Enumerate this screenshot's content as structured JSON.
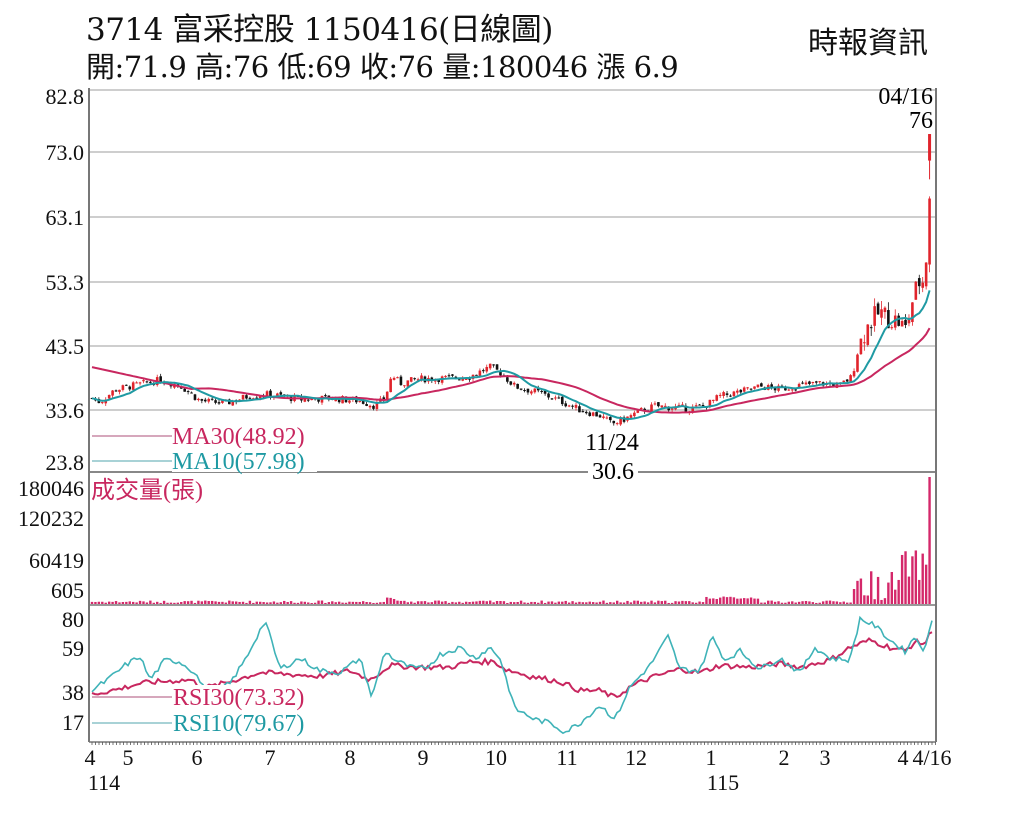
{
  "header": {
    "title": "3714  富采控股 1150416(日線圖)",
    "summary": "開:71.9 高:76 低:69 收:76 量:180046 漲 6.9",
    "source": "時報資訊"
  },
  "price_panel": {
    "y_ticks": [
      "82.8",
      "73.0",
      "63.1",
      "53.3",
      "43.5",
      "33.6",
      "23.8"
    ],
    "last_date_label": "04/16",
    "last_price_label": "76",
    "low_date_label": "11/24",
    "low_price_label": "30.6",
    "legend": [
      {
        "label": "MA30(48.92)",
        "color": "#c8275f"
      },
      {
        "label": "MA10(57.98)",
        "color": "#1f9aa3"
      }
    ]
  },
  "volume_panel": {
    "title": "成交量(張)",
    "y_ticks": [
      "180046",
      "120232",
      "60419",
      "605"
    ],
    "color": "#d4286a"
  },
  "rsi_panel": {
    "y_ticks": [
      "80",
      "59",
      "38",
      "17"
    ],
    "legend": [
      {
        "label": "RSI30(73.32)",
        "color": "#c8275f"
      },
      {
        "label": "RSI10(79.67)",
        "color": "#1f9aa3"
      }
    ]
  },
  "x_axis": {
    "month_labels": [
      "4",
      "5",
      "6",
      "7",
      "8",
      "9",
      "10",
      "11",
      "12",
      "1",
      "2",
      "3",
      "4",
      "4/16"
    ],
    "year_labels": [
      "114",
      "115"
    ]
  },
  "colors": {
    "up": "#e0242c",
    "down": "#111111",
    "ma30": "#c8275f",
    "ma10": "#1f9aa3",
    "volume": "#d4286a",
    "grid": "#bdbdbd"
  },
  "chart_data": [
    {
      "type": "candlestick",
      "title": "3714 富采控股 1150416(日線圖)",
      "ylim": [
        23.8,
        82.8
      ],
      "y_ticks": [
        82.8,
        73.0,
        63.1,
        53.3,
        43.5,
        33.6,
        23.8
      ],
      "last": {
        "date": "04/16",
        "open": 71.9,
        "high": 76,
        "low": 69,
        "close": 76,
        "volume": 180046,
        "change": 6.9
      },
      "annotations": [
        {
          "date": "11/24",
          "value": 30.6,
          "text": "low"
        }
      ],
      "months": [
        "4",
        "5",
        "6",
        "7",
        "8",
        "9",
        "10",
        "11",
        "12",
        "1",
        "2",
        "3",
        "4"
      ],
      "approx_monthly_close": [
        36.0,
        37.5,
        35.0,
        35.5,
        35.0,
        38.5,
        39.0,
        33.0,
        32.5,
        33.5,
        36.0,
        37.5,
        76.0
      ],
      "series": [
        {
          "name": "MA30",
          "last": 48.92
        },
        {
          "name": "MA10",
          "last": 57.98
        }
      ]
    },
    {
      "type": "bar",
      "title": "成交量(張)",
      "y_ticks": [
        180046,
        120232,
        60419,
        605
      ],
      "note": "volume low through Feb, rising in March–April; last bar 180046"
    },
    {
      "type": "line",
      "title": "RSI",
      "y_ticks": [
        80,
        59,
        38,
        17
      ],
      "series": [
        {
          "name": "RSI30",
          "last": 73.32
        },
        {
          "name": "RSI10",
          "last": 79.67
        }
      ]
    }
  ]
}
